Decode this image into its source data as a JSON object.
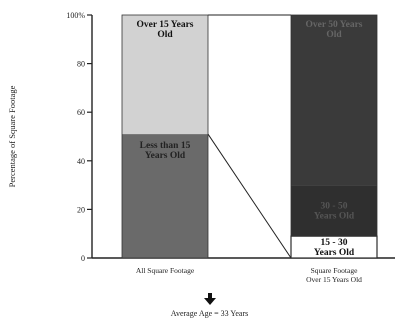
{
  "chart_data": {
    "type": "bar",
    "stacked": true,
    "normalized": true,
    "ylabel": "Percentage of Square Footage",
    "ylim": [
      0,
      100
    ],
    "yticks": [
      "0",
      "20",
      "40",
      "60",
      "80",
      "100%"
    ],
    "categories": [
      "All Square Footage",
      "Square Footage Over 15 Years Old"
    ],
    "bars": [
      {
        "category": "All Square Footage",
        "segments": [
          {
            "label": "Less than 15 Years Old",
            "value": 51,
            "color": "#6a6a6a",
            "text_color": "#222222"
          },
          {
            "label": "Over 15 Years Old",
            "value": 49,
            "color": "#d2d2d2",
            "text_color": "#111111"
          }
        ]
      },
      {
        "category": "Square Footage Over 15 Years Old",
        "segments": [
          {
            "label": "15 - 30 Years Old",
            "value": 9,
            "color": "#ffffff",
            "text_color": "#111111"
          },
          {
            "label": "30 - 50 Years Old",
            "value": 21,
            "color": "#2f2f2f",
            "text_color": "#555555"
          },
          {
            "label": "Over 50 Years Old",
            "value": 70,
            "color": "#3a3a3a",
            "text_color": "#666666"
          }
        ]
      }
    ],
    "connector": "Over 15 Years Old segment expands into the second bar",
    "grid": false,
    "legend": "none"
  },
  "footer": {
    "arrow_icon": "down-arrow-icon",
    "average_age": "Average Age = 33 Years"
  }
}
